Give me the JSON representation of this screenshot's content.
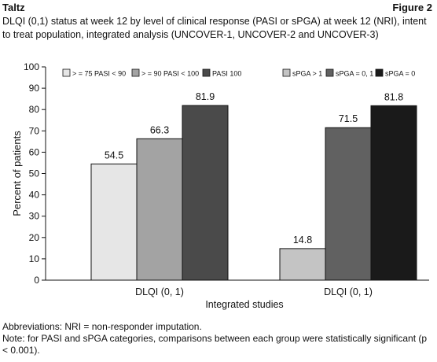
{
  "header": {
    "brand": "Taltz",
    "figure": "Figure 2"
  },
  "title": "DLQI (0,1) status at week 12 by level of clinical response (PASI or sPGA) at week 12 (NRI), intent to treat population, integrated analysis (UNCOVER-1, UNCOVER-2 and UNCOVER-3)",
  "footnotes": [
    "Abbreviations: NRI = non-responder imputation.",
    "Note: for PASI and sPGA categories, comparisons between each group were statistically significant (p < 0.001)."
  ],
  "chart_data": {
    "type": "bar",
    "ylabel": "Percent of patients",
    "xlabel": "Integrated studies",
    "ylim": [
      0,
      100
    ],
    "yticks": [
      0,
      10,
      20,
      30,
      40,
      50,
      60,
      70,
      80,
      90,
      100
    ],
    "grid": false,
    "groups": [
      {
        "category": "DLQI (0, 1)",
        "series": [
          {
            "name": "> = 75 PASI < 90",
            "value": 54.5,
            "label": "54.5",
            "color": "#e6e6e6"
          },
          {
            "name": "> = 90 PASI < 100",
            "value": 66.3,
            "label": "66.3",
            "color": "#a3a3a3"
          },
          {
            "name": "PASI 100",
            "value": 81.9,
            "label": "81.9",
            "color": "#4a4a4a"
          }
        ]
      },
      {
        "category": "DLQI (0, 1)",
        "series": [
          {
            "name": "sPGA > 1",
            "value": 14.8,
            "label": "14.8",
            "color": "#c4c4c4"
          },
          {
            "name": "sPGA = 0, 1",
            "value": 71.5,
            "label": "71.5",
            "color": "#616161"
          },
          {
            "name": "sPGA = 0",
            "value": 81.8,
            "label": "81.8",
            "color": "#1a1a1a"
          }
        ]
      }
    ]
  }
}
